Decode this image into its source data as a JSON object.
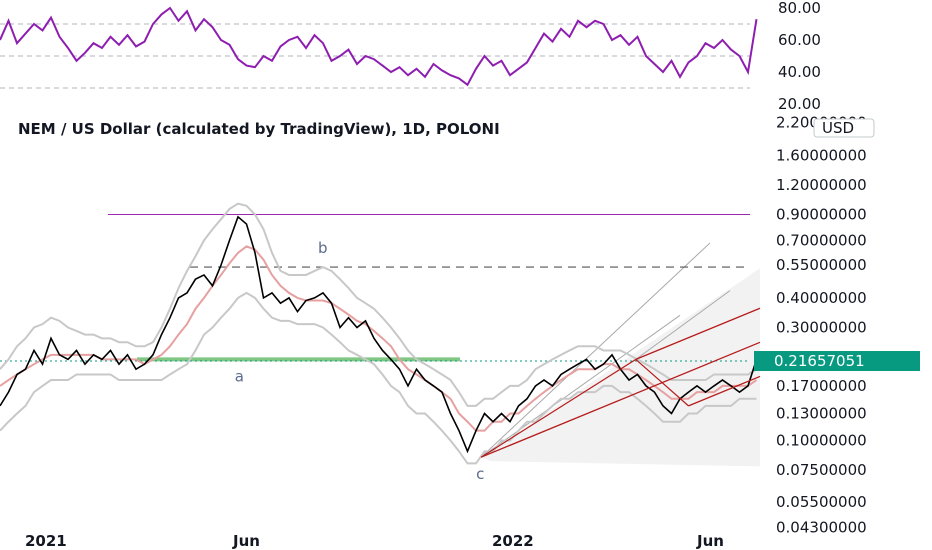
{
  "colors": {
    "rsi": "#8e1eb0",
    "candle": "#000000",
    "ma": "#e6a0a0",
    "bands": "#c8c8c8",
    "pitchfork": "#b71c1c",
    "pitchfork_fill": "#f2f2f2",
    "resistance": "#9c27b0",
    "support": "#81c784",
    "current_price": "#089981"
  },
  "currency_label": "USD",
  "current_price_label": "0.21657051",
  "chart_data": [
    {
      "type": "line",
      "panel": "rsi",
      "yticks": [
        "80.00",
        "60.00",
        "40.00",
        "20.00"
      ],
      "ytick_values": [
        80,
        60,
        40,
        20
      ],
      "ylim": [
        15,
        85
      ],
      "guide_levels": [
        70,
        50,
        30
      ],
      "x": [
        0,
        5,
        10,
        15,
        20,
        25,
        30,
        35,
        40,
        45,
        50,
        55,
        60,
        65,
        70,
        75,
        80,
        85,
        90,
        95,
        100,
        105,
        110,
        115,
        120,
        125,
        130,
        135,
        140,
        145,
        150,
        155,
        160,
        165,
        170,
        175,
        180,
        185,
        190,
        195,
        200,
        205,
        210,
        215,
        220,
        225,
        230,
        235,
        240,
        245,
        250,
        255,
        260,
        265,
        270,
        275,
        280,
        285,
        290,
        295,
        300,
        305,
        310,
        315,
        320,
        325,
        330,
        335,
        340,
        345,
        350,
        355,
        360,
        365,
        370,
        375,
        380,
        385,
        390,
        395,
        400,
        405,
        410,
        415,
        420,
        425,
        430,
        435,
        440,
        445
      ],
      "values": [
        60,
        72,
        58,
        64,
        70,
        66,
        74,
        62,
        55,
        47,
        52,
        58,
        55,
        62,
        57,
        63,
        56,
        59,
        70,
        76,
        80,
        72,
        78,
        66,
        73,
        68,
        60,
        57,
        48,
        44,
        43,
        50,
        47,
        56,
        60,
        62,
        55,
        63,
        58,
        47,
        50,
        54,
        45,
        50,
        48,
        44,
        40,
        43,
        38,
        42,
        37,
        45,
        41,
        38,
        36,
        32,
        42,
        50,
        44,
        47,
        38,
        42,
        46,
        55,
        64,
        59,
        67,
        62,
        72,
        68,
        72,
        70,
        60,
        63,
        57,
        62,
        50,
        45,
        40,
        47,
        37,
        46,
        50,
        58,
        55,
        60,
        54,
        50,
        40,
        73
      ]
    },
    {
      "type": "line",
      "panel": "price",
      "title": "NEM / US Dollar (calculated by TradingView), 1D, POLONI",
      "xticks": [
        "2021",
        "Jun",
        "2022",
        "Jun"
      ],
      "yticks": [
        "2.20000000",
        "1.60000000",
        "1.20000000",
        "0.90000000",
        "0.70000000",
        "0.55000000",
        "0.40000000",
        "0.30000000",
        "0.17000000",
        "0.13000000",
        "0.10000000",
        "0.07500000",
        "0.05500000",
        "0.04300000"
      ],
      "ytick_values": [
        2.2,
        1.6,
        1.2,
        0.9,
        0.7,
        0.55,
        0.4,
        0.3,
        0.17,
        0.13,
        0.1,
        0.075,
        0.055,
        0.043
      ],
      "log_scale": true,
      "ylim": [
        0.038,
        2.3
      ],
      "x": [
        0,
        5,
        10,
        15,
        20,
        25,
        30,
        35,
        40,
        45,
        50,
        55,
        60,
        65,
        70,
        75,
        80,
        85,
        90,
        95,
        100,
        105,
        110,
        115,
        120,
        125,
        130,
        135,
        140,
        145,
        150,
        155,
        160,
        165,
        170,
        175,
        180,
        185,
        190,
        195,
        200,
        205,
        210,
        215,
        220,
        225,
        230,
        235,
        240,
        245,
        250,
        255,
        260,
        265,
        270,
        275,
        280,
        285,
        290,
        295,
        300,
        305,
        310,
        315,
        320,
        325,
        330,
        335,
        340,
        345,
        350,
        355,
        360,
        365,
        370,
        375,
        380,
        385,
        390,
        395,
        400,
        405,
        410,
        415,
        420,
        425,
        430,
        435,
        440,
        445
      ],
      "values": [
        0.14,
        0.16,
        0.19,
        0.2,
        0.24,
        0.21,
        0.27,
        0.23,
        0.22,
        0.24,
        0.21,
        0.23,
        0.22,
        0.24,
        0.21,
        0.23,
        0.2,
        0.21,
        0.23,
        0.28,
        0.33,
        0.4,
        0.42,
        0.48,
        0.5,
        0.45,
        0.55,
        0.7,
        0.88,
        0.82,
        0.62,
        0.4,
        0.42,
        0.38,
        0.4,
        0.35,
        0.39,
        0.4,
        0.42,
        0.38,
        0.3,
        0.33,
        0.3,
        0.32,
        0.27,
        0.24,
        0.22,
        0.2,
        0.17,
        0.2,
        0.18,
        0.17,
        0.16,
        0.13,
        0.11,
        0.09,
        0.11,
        0.13,
        0.12,
        0.13,
        0.12,
        0.14,
        0.15,
        0.17,
        0.18,
        0.17,
        0.19,
        0.2,
        0.21,
        0.22,
        0.2,
        0.21,
        0.23,
        0.2,
        0.18,
        0.19,
        0.17,
        0.16,
        0.14,
        0.13,
        0.15,
        0.16,
        0.17,
        0.16,
        0.17,
        0.18,
        0.17,
        0.16,
        0.17,
        0.22
      ],
      "ma_values": [
        0.17,
        0.18,
        0.19,
        0.2,
        0.21,
        0.22,
        0.23,
        0.23,
        0.23,
        0.23,
        0.23,
        0.23,
        0.22,
        0.22,
        0.22,
        0.22,
        0.22,
        0.21,
        0.22,
        0.23,
        0.25,
        0.28,
        0.31,
        0.36,
        0.4,
        0.45,
        0.5,
        0.56,
        0.62,
        0.66,
        0.64,
        0.58,
        0.5,
        0.45,
        0.42,
        0.4,
        0.39,
        0.39,
        0.39,
        0.38,
        0.36,
        0.34,
        0.32,
        0.31,
        0.29,
        0.27,
        0.25,
        0.22,
        0.2,
        0.19,
        0.18,
        0.17,
        0.16,
        0.15,
        0.13,
        0.12,
        0.11,
        0.11,
        0.12,
        0.12,
        0.13,
        0.13,
        0.14,
        0.15,
        0.16,
        0.17,
        0.18,
        0.19,
        0.2,
        0.2,
        0.2,
        0.21,
        0.21,
        0.2,
        0.2,
        0.19,
        0.18,
        0.17,
        0.16,
        0.15,
        0.15,
        0.15,
        0.16,
        0.16,
        0.16,
        0.17,
        0.17,
        0.17,
        0.17,
        0.18
      ],
      "band_upper": [
        0.2,
        0.22,
        0.25,
        0.27,
        0.3,
        0.31,
        0.33,
        0.32,
        0.3,
        0.29,
        0.28,
        0.28,
        0.27,
        0.27,
        0.26,
        0.26,
        0.25,
        0.25,
        0.26,
        0.3,
        0.36,
        0.44,
        0.52,
        0.6,
        0.7,
        0.78,
        0.86,
        0.95,
        1.0,
        0.98,
        0.9,
        0.78,
        0.62,
        0.52,
        0.5,
        0.5,
        0.5,
        0.52,
        0.54,
        0.52,
        0.48,
        0.44,
        0.4,
        0.38,
        0.36,
        0.33,
        0.3,
        0.27,
        0.24,
        0.22,
        0.21,
        0.2,
        0.19,
        0.18,
        0.16,
        0.14,
        0.14,
        0.15,
        0.15,
        0.16,
        0.17,
        0.17,
        0.18,
        0.2,
        0.21,
        0.22,
        0.23,
        0.24,
        0.25,
        0.25,
        0.25,
        0.24,
        0.24,
        0.24,
        0.23,
        0.22,
        0.21,
        0.2,
        0.19,
        0.18,
        0.18,
        0.18,
        0.18,
        0.18,
        0.19,
        0.19,
        0.19,
        0.19,
        0.19,
        0.2
      ],
      "band_lower": [
        0.11,
        0.12,
        0.13,
        0.14,
        0.16,
        0.17,
        0.18,
        0.18,
        0.18,
        0.19,
        0.19,
        0.19,
        0.19,
        0.19,
        0.18,
        0.18,
        0.18,
        0.18,
        0.18,
        0.18,
        0.19,
        0.2,
        0.21,
        0.24,
        0.28,
        0.3,
        0.33,
        0.36,
        0.4,
        0.42,
        0.4,
        0.36,
        0.33,
        0.32,
        0.32,
        0.31,
        0.31,
        0.31,
        0.3,
        0.28,
        0.26,
        0.24,
        0.23,
        0.22,
        0.21,
        0.19,
        0.17,
        0.16,
        0.14,
        0.13,
        0.13,
        0.12,
        0.11,
        0.1,
        0.09,
        0.08,
        0.08,
        0.09,
        0.09,
        0.1,
        0.1,
        0.11,
        0.12,
        0.12,
        0.13,
        0.14,
        0.15,
        0.15,
        0.16,
        0.16,
        0.16,
        0.17,
        0.17,
        0.16,
        0.16,
        0.15,
        0.14,
        0.13,
        0.12,
        0.12,
        0.12,
        0.13,
        0.13,
        0.14,
        0.14,
        0.14,
        0.14,
        0.15,
        0.15,
        0.15
      ],
      "resistance_level": 0.9,
      "dashed_level": 0.54,
      "support_level": 0.22,
      "current_price": 0.21657051,
      "wave_labels": [
        {
          "text": "a",
          "x": 141,
          "value": 0.22
        },
        {
          "text": "b",
          "x": 190,
          "value": 0.54
        },
        {
          "text": "c",
          "x": 283,
          "value": 0.085
        }
      ],
      "pitchfork": {
        "anchors": [
          {
            "x": 283,
            "value": 0.085
          },
          {
            "x": 374,
            "value": 0.22
          },
          {
            "x": 405,
            "value": 0.14
          }
        ],
        "tines_end_x": 760
      }
    }
  ]
}
